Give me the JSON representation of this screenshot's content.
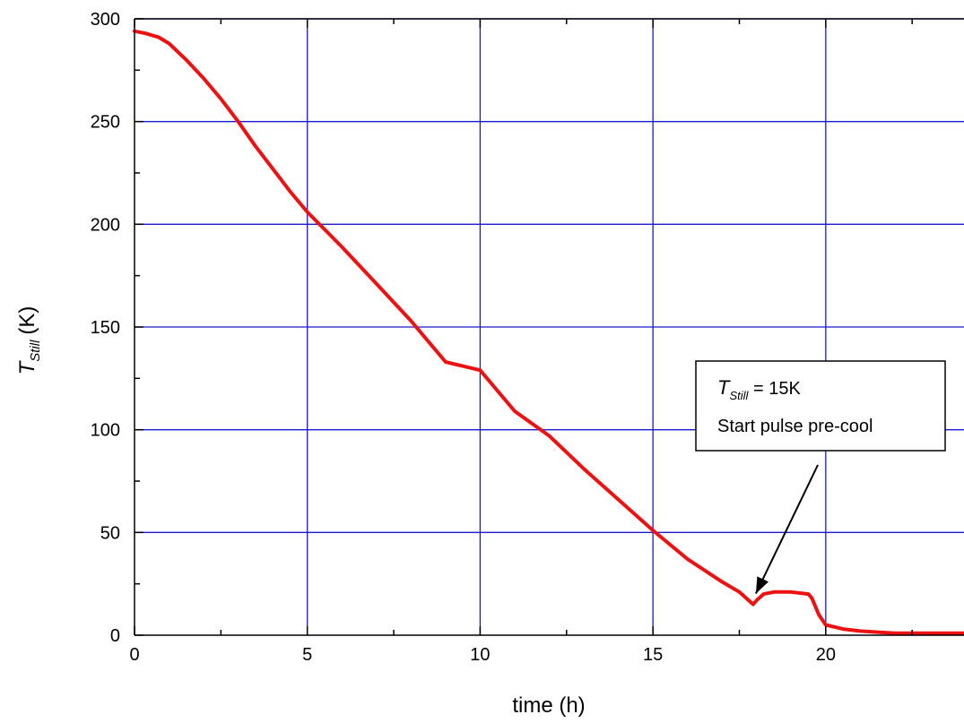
{
  "chart_data": {
    "type": "line",
    "xlabel": "time (h)",
    "ylabel_main": "T",
    "ylabel_sub": "Still",
    "ylabel_unit": "(K)",
    "xlim": [
      0,
      24
    ],
    "ylim": [
      0,
      300
    ],
    "x_ticks": [
      0,
      5,
      10,
      15,
      20
    ],
    "y_ticks": [
      0,
      50,
      100,
      150,
      200,
      250,
      300
    ],
    "grid": true,
    "grid_color": "#1a1acc",
    "line_color": "#ee1111",
    "series": [
      {
        "x": [
          0,
          0.3,
          0.7,
          1.0,
          1.5,
          2.0,
          2.5,
          3.0,
          3.5,
          4.0,
          4.5,
          5.0,
          6.0,
          7.0,
          8.0,
          9.0,
          10.0,
          11.0,
          12.0,
          13.0,
          14.0,
          15.0,
          16.0,
          17.0,
          17.5,
          17.9,
          18.0,
          18.2,
          18.5,
          19.0,
          19.5,
          19.6,
          19.8,
          20.0,
          20.5,
          21.0,
          21.5,
          22.0,
          23.0,
          24.0
        ],
        "y": [
          294,
          293,
          291,
          288,
          280,
          271,
          261,
          250,
          238,
          227,
          216,
          206,
          189,
          171,
          153,
          133,
          129,
          109,
          97,
          81,
          66,
          51,
          37,
          26,
          21,
          15,
          17,
          20,
          21,
          21,
          20,
          18,
          10,
          5,
          3,
          2,
          1.5,
          1,
          1,
          1
        ]
      }
    ],
    "annotation": {
      "line1_main": "T",
      "line1_sub": "Still",
      "line1_rest": " = 15K",
      "line2": "Start pulse pre-cool",
      "arrow_target": [
        17.9,
        15
      ]
    }
  }
}
